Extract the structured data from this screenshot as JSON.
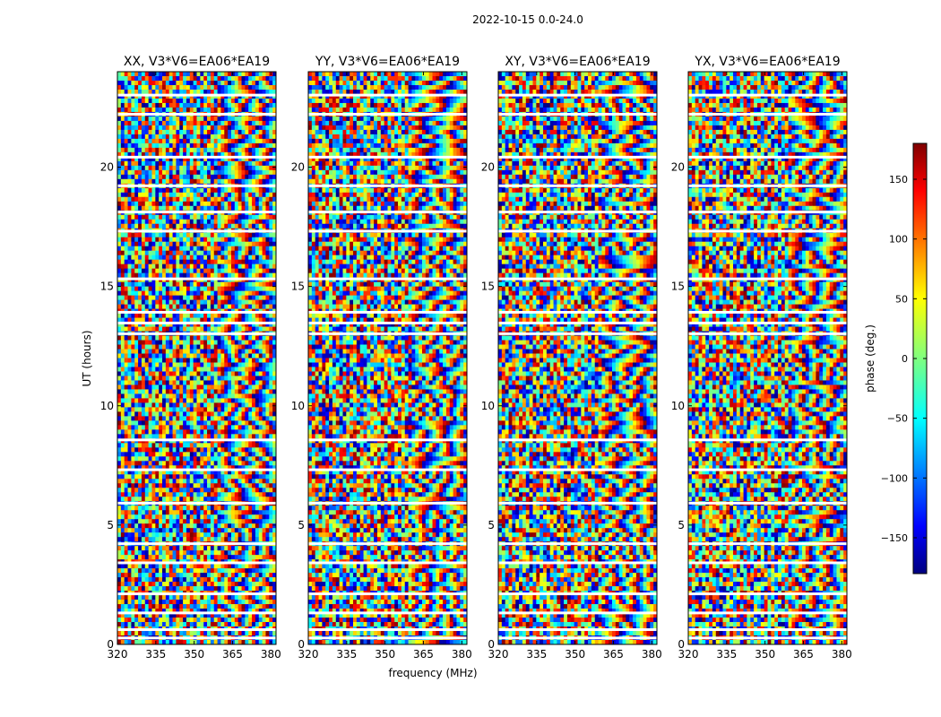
{
  "figure": {
    "suptitle": "2022-10-15 0.0-24.0"
  },
  "chart_data": {
    "type": "heatmap",
    "xlabel": "frequency (MHz)",
    "ylabel": "UT (hours)",
    "xlim": [
      320,
      382
    ],
    "ylim": [
      0,
      24
    ],
    "xticks": [
      "320",
      "335",
      "350",
      "365",
      "380"
    ],
    "xtick_values": [
      320,
      335,
      350,
      365,
      380
    ],
    "yticks": [
      "0",
      "5",
      "10",
      "15",
      "20"
    ],
    "ytick_values": [
      0,
      5,
      10,
      15,
      20
    ],
    "value_range": [
      -180,
      180
    ],
    "colormap": "jet",
    "panels": [
      {
        "title": "XX, V3*V6=EA06*EA19",
        "polarization": "XX"
      },
      {
        "title": "YY, V3*V6=EA06*EA19",
        "polarization": "YY"
      },
      {
        "title": "XY, V3*V6=EA06*EA19",
        "polarization": "XY"
      },
      {
        "title": "YX, V3*V6=EA06*EA19",
        "polarization": "YX"
      }
    ],
    "colorbar": {
      "label": "phase (deg.)",
      "ticks": [
        "150",
        "100",
        "50",
        "0",
        "−50",
        "−100",
        "−150"
      ],
      "tick_values": [
        150,
        100,
        50,
        0,
        -50,
        -100,
        -150
      ],
      "range": [
        -180,
        180
      ]
    },
    "flagged_gaps_ut": [
      0.25,
      0.6,
      1.3,
      2.1,
      3.4,
      4.2,
      5.9,
      7.3,
      8.55,
      13.0,
      13.45,
      13.9,
      15.3,
      17.3,
      18.1,
      19.2,
      20.4,
      22.2,
      23.0
    ]
  }
}
